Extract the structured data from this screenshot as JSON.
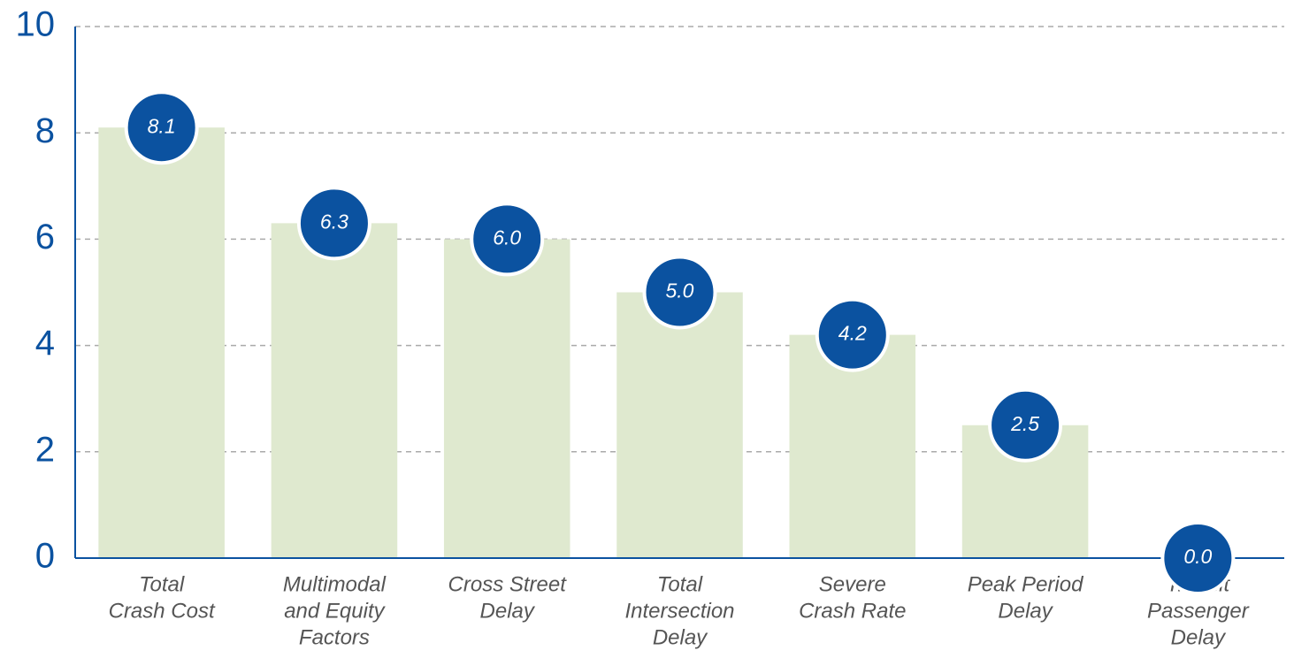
{
  "chart_data": {
    "type": "bar",
    "categories": [
      [
        "Total",
        "Crash Cost"
      ],
      [
        "Multimodal",
        "and Equity",
        "Factors"
      ],
      [
        "Cross Street",
        "Delay"
      ],
      [
        "Total",
        "Intersection",
        "Delay"
      ],
      [
        "Severe",
        "Crash Rate"
      ],
      [
        "Peak Period",
        "Delay"
      ],
      [
        "Transit",
        "Passenger",
        "Delay"
      ]
    ],
    "values": [
      8.1,
      6.3,
      6.0,
      5.0,
      4.2,
      2.5,
      0.0
    ],
    "value_labels": [
      "8.1",
      "6.3",
      "6.0",
      "5.0",
      "4.2",
      "2.5",
      "0.0"
    ],
    "color": "#dfe9cf",
    "label_color": "#0b52a0",
    "ylim": [
      0,
      10
    ],
    "yticks": [
      0,
      2,
      4,
      6,
      8,
      10
    ],
    "grid": true
  }
}
